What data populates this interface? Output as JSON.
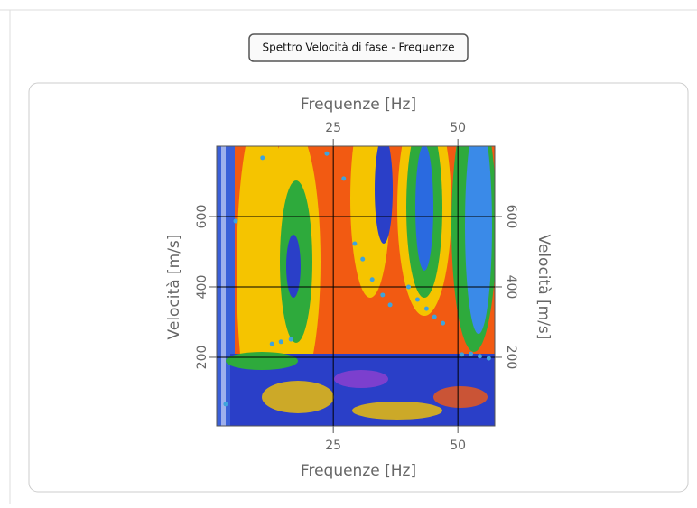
{
  "chart_data": {
    "type": "scatter",
    "title": "Spettro Velocità di fase - Frequenze",
    "x_label": "Frequenze [Hz]",
    "y_label": "Velocità [m/s]",
    "xlim": [
      1.6,
      57.4
    ],
    "ylim": [
      5,
      800
    ],
    "xticks": [
      25,
      50
    ],
    "yticks": [
      200,
      400,
      600
    ],
    "grid": true,
    "series": [
      {
        "color": "#3fa3dc",
        "x": [
          3.4,
          5.4,
          10.8,
          12.7,
          14.5,
          16.5,
          23.7,
          27.1,
          29.3,
          30.9,
          32.8,
          34.9,
          36.4,
          40.1,
          41.9,
          43.7,
          45.3,
          47.0,
          50.8,
          52.6,
          54.4,
          56.2
        ],
        "values": [
          67,
          587,
          767,
          238,
          244,
          251,
          779,
          708,
          523,
          479,
          421,
          377,
          349,
          400,
          364,
          338,
          315,
          297,
          208,
          210,
          203,
          197
        ]
      }
    ]
  }
}
